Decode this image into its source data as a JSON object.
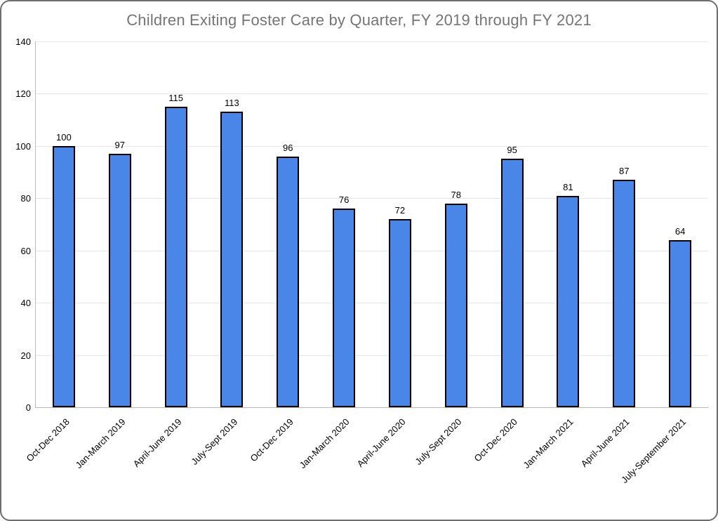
{
  "window": {
    "background": "#ffffff",
    "border_color": "#6e6e6e"
  },
  "chart_data": {
    "type": "bar",
    "title": "Children Exiting Foster Care by Quarter, FY 2019 through FY 2021",
    "title_color": "#757575",
    "categories": [
      "Oct-Dec 2018",
      "Jan-March 2019",
      "April-June 2019",
      "July-Sept 2019",
      "Oct-Dec 2019",
      "Jan-March 2020",
      "April-June 2020",
      "July-Sept 2020",
      "Oct-Dec 2020",
      "Jan-March 2021",
      "April-June 2021",
      "July-September 2021"
    ],
    "values": [
      100,
      97,
      115,
      113,
      96,
      76,
      72,
      78,
      95,
      81,
      87,
      64
    ],
    "value_labels_shown": true,
    "xlabel": "",
    "ylabel": "",
    "ylim": [
      0,
      140
    ],
    "yticks": [
      0,
      20,
      40,
      60,
      80,
      100,
      120,
      140
    ],
    "grid": true,
    "legend_position": "none",
    "bar_color": "#4a86e8",
    "bar_border_color": "#000000",
    "gridline_color": "#e6e6e6",
    "axis_line_color": "#b7b7b7",
    "tick_label_color": "#000000"
  }
}
